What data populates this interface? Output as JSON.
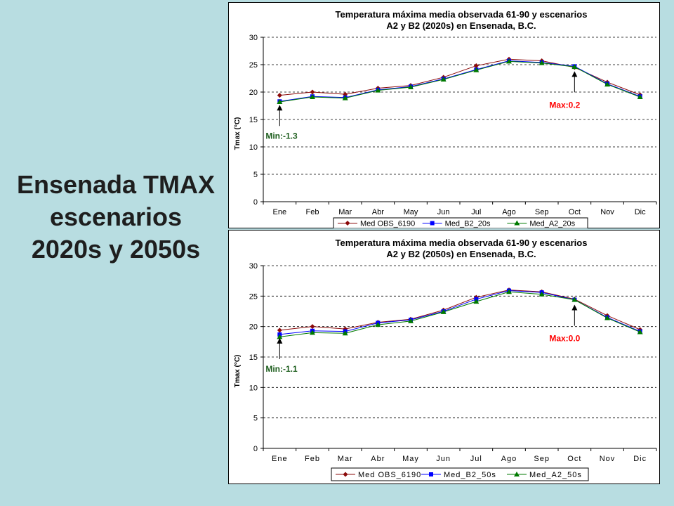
{
  "slide": {
    "title_lines": [
      "Ensenada TMAX",
      "escenarios",
      "2020s y 2050s"
    ]
  },
  "colors": {
    "background": "#b8dde1",
    "obs": "#8b0a0a",
    "b2": "#0000ff",
    "a2": "#007a00",
    "max_annotation": "#ff0000",
    "min_annotation": "#1e5e1e"
  },
  "chart_data": [
    {
      "type": "line",
      "title": "Temperatura máxima media observada 61-90 y escenarios",
      "subtitle": "A2 y B2 (2020s) en Ensenada, B.C.",
      "xlabel": "",
      "ylabel": "Tmax (°C)",
      "ylim": [
        0,
        30
      ],
      "yticks": [
        "0",
        "5",
        "10",
        "15",
        "20",
        "25",
        "30"
      ],
      "grid": "dashed horizontal",
      "legend": "bottom",
      "categories": [
        "Ene",
        "Feb",
        "Mar",
        "Abr",
        "May",
        "Jun",
        "Jul",
        "Ago",
        "Sep",
        "Oct",
        "Nov",
        "Dic"
      ],
      "series": [
        {
          "name": "Med OBS_6190",
          "color": "#8b0a0a",
          "marker": "diamond",
          "values": [
            19.4,
            20.0,
            19.6,
            20.7,
            21.2,
            22.7,
            24.8,
            26.0,
            25.7,
            24.5,
            21.8,
            19.5
          ]
        },
        {
          "name": "Med_B2_20s",
          "color": "#0000ff",
          "marker": "square",
          "values": [
            18.3,
            19.2,
            19.0,
            20.4,
            21.0,
            22.4,
            24.1,
            25.7,
            25.4,
            24.7,
            21.5,
            19.2
          ]
        },
        {
          "name": "Med_A2_20s",
          "color": "#007a00",
          "marker": "triangle",
          "values": [
            18.2,
            19.1,
            18.9,
            20.3,
            20.9,
            22.3,
            24.0,
            25.6,
            25.3,
            24.6,
            21.4,
            19.1
          ]
        }
      ],
      "annotations": [
        {
          "text": "Min:-1.3",
          "category_index": 0,
          "color": "#1e5e1e"
        },
        {
          "text": "Max:0.2",
          "category_index": 9,
          "color": "#ff0000"
        }
      ]
    },
    {
      "type": "line",
      "title": "Temperatura máxima media observada 61-90 y escenarios",
      "subtitle": "A2 y B2 (2050s) en Ensenada, B.C.",
      "xlabel": "",
      "ylabel": "Tmax (°C)",
      "ylim": [
        0,
        30
      ],
      "yticks": [
        "0",
        "5",
        "10",
        "15",
        "20",
        "25",
        "30"
      ],
      "grid": "dashed horizontal",
      "legend": "bottom",
      "categories": [
        "Ene",
        "Feb",
        "Mar",
        "Abr",
        "May",
        "Jun",
        "Jul",
        "Ago",
        "Sep",
        "Oct",
        "Nov",
        "Dic"
      ],
      "series": [
        {
          "name": "Med OBS_6190",
          "color": "#8b0a0a",
          "marker": "diamond",
          "values": [
            19.4,
            20.0,
            19.6,
            20.7,
            21.2,
            22.7,
            24.8,
            26.0,
            25.7,
            24.5,
            21.8,
            19.5
          ]
        },
        {
          "name": "Med_B2_50s",
          "color": "#0000ff",
          "marker": "square",
          "values": [
            18.7,
            19.3,
            19.2,
            20.6,
            21.1,
            22.5,
            24.5,
            25.9,
            25.6,
            24.4,
            21.5,
            19.2
          ]
        },
        {
          "name": "Med_A2_50s",
          "color": "#007a00",
          "marker": "triangle",
          "values": [
            18.3,
            19.0,
            18.9,
            20.3,
            20.9,
            22.4,
            24.1,
            25.7,
            25.3,
            24.4,
            21.4,
            19.1
          ]
        }
      ],
      "annotations": [
        {
          "text": "Min:-1.1",
          "category_index": 0,
          "color": "#1e5e1e"
        },
        {
          "text": "Max:0.0",
          "category_index": 9,
          "color": "#ff0000"
        }
      ]
    }
  ]
}
